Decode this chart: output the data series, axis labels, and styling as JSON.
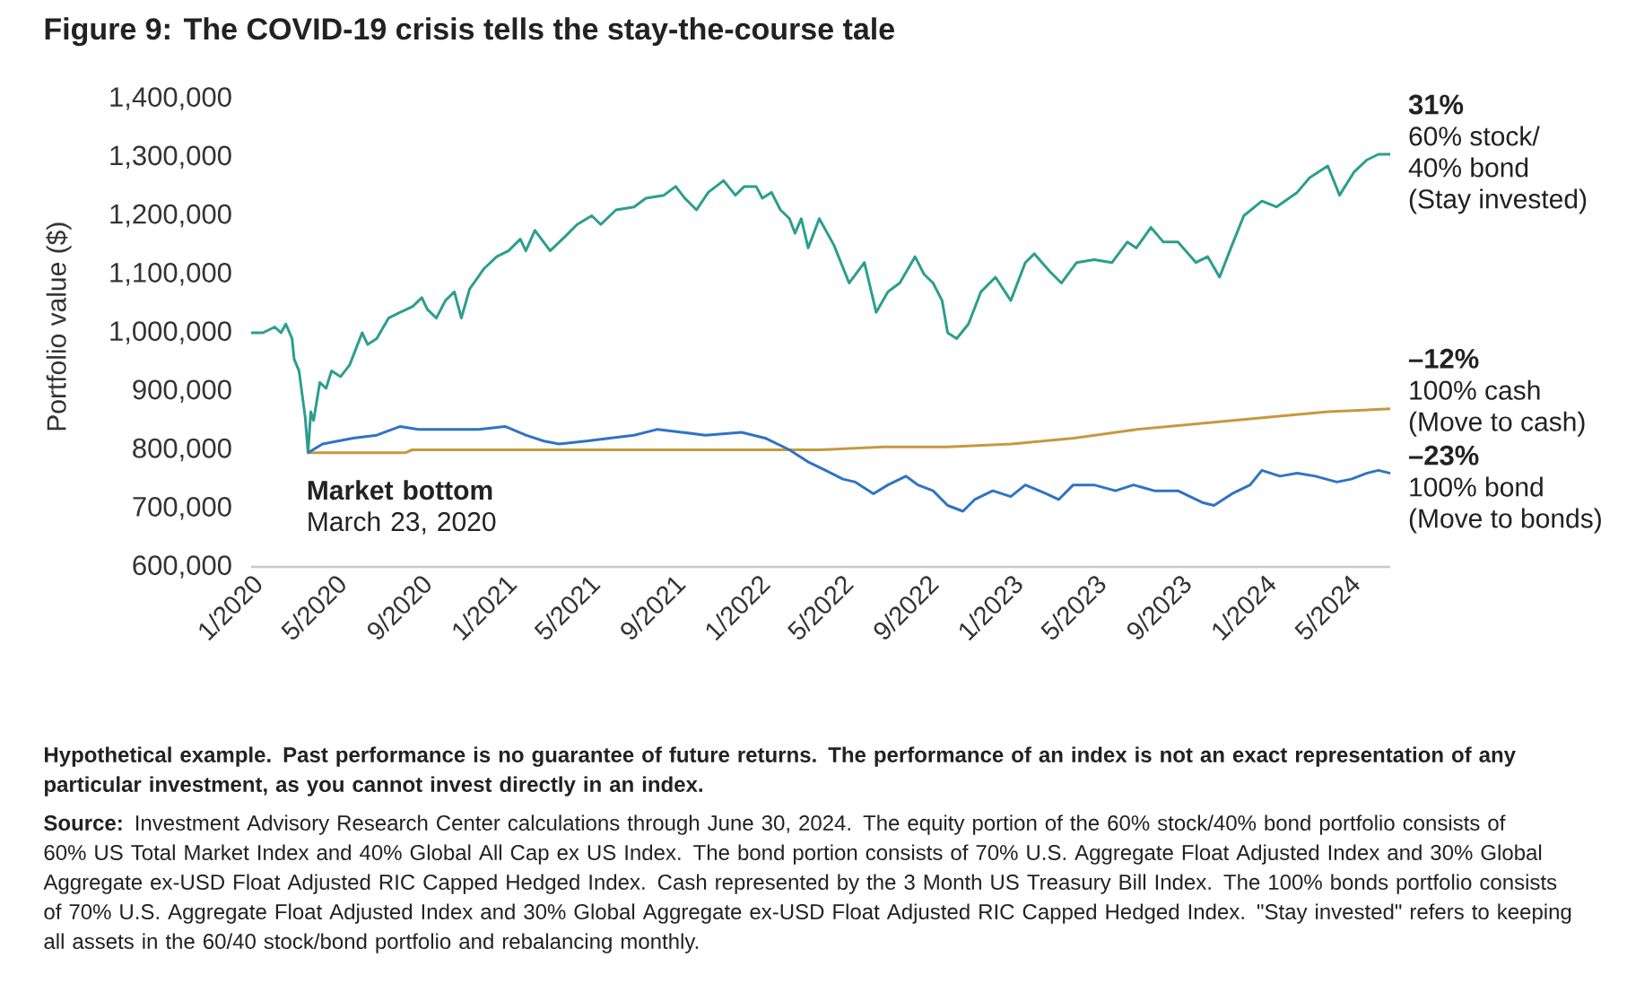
{
  "chart_data": {
    "type": "line",
    "title": "Figure 9: The COVID-19 crisis tells the stay-the-course tale",
    "ylabel": "Portfolio value ($)",
    "xlim": [
      "2020-01-01",
      "2024-06-30"
    ],
    "xticks": [
      {
        "value": "2020-01",
        "label": "1/2020"
      },
      {
        "value": "2020-05",
        "label": "5/2020"
      },
      {
        "value": "2020-09",
        "label": "9/2020"
      },
      {
        "value": "2021-01",
        "label": "1/2021"
      },
      {
        "value": "2021-05",
        "label": "5/2021"
      },
      {
        "value": "2021-09",
        "label": "9/2021"
      },
      {
        "value": "2022-01",
        "label": "1/2022"
      },
      {
        "value": "2022-05",
        "label": "5/2022"
      },
      {
        "value": "2022-09",
        "label": "9/2022"
      },
      {
        "value": "2023-01",
        "label": "1/2023"
      },
      {
        "value": "2023-05",
        "label": "5/2023"
      },
      {
        "value": "2023-09",
        "label": "9/2023"
      },
      {
        "value": "2024-01",
        "label": "1/2024"
      },
      {
        "value": "2024-05",
        "label": "5/2024"
      }
    ],
    "ylim": [
      600000,
      1400000
    ],
    "yticks": [
      {
        "value": 600000,
        "label": "600,000"
      },
      {
        "value": 700000,
        "label": "700,000"
      },
      {
        "value": 800000,
        "label": "800,000"
      },
      {
        "value": 900000,
        "label": "900,000"
      },
      {
        "value": 1000000,
        "label": "1,000,000"
      },
      {
        "value": 1100000,
        "label": "1,100,000"
      },
      {
        "value": 1200000,
        "label": "1,200,000"
      },
      {
        "value": 1300000,
        "label": "1,300,000"
      },
      {
        "value": 1400000,
        "label": "1,400,000"
      }
    ],
    "marker": "none",
    "series": [
      {
        "name": "60% stock/40% bond (Stay invested)",
        "color": "#2b9e8e",
        "x": [
          "2020-01-01",
          "2020-01-18",
          "2020-02-04",
          "2020-02-13",
          "2020-02-20",
          "2020-02-29",
          "2020-03-03",
          "2020-03-10",
          "2020-03-19",
          "2020-03-23",
          "2020-03-27",
          "2020-03-31",
          "2020-04-09",
          "2020-04-18",
          "2020-04-26",
          "2020-05-09",
          "2020-05-22",
          "2020-06-09",
          "2020-06-17",
          "2020-06-30",
          "2020-07-17",
          "2020-08-03",
          "2020-08-21",
          "2020-09-03",
          "2020-09-11",
          "2020-09-24",
          "2020-10-07",
          "2020-10-20",
          "2020-10-30",
          "2020-11-11",
          "2020-12-02",
          "2020-12-20",
          "2021-01-06",
          "2021-01-23",
          "2021-01-31",
          "2021-02-13",
          "2021-03-07",
          "2021-03-29",
          "2021-04-15",
          "2021-05-06",
          "2021-05-19",
          "2021-06-10",
          "2021-07-06",
          "2021-07-23",
          "2021-08-18",
          "2021-09-04",
          "2021-09-17",
          "2021-10-04",
          "2021-10-21",
          "2021-11-12",
          "2021-11-29",
          "2021-12-12",
          "2021-12-29",
          "2022-01-07",
          "2022-01-20",
          "2022-02-02",
          "2022-02-15",
          "2022-02-23",
          "2022-03-04",
          "2022-03-14",
          "2022-03-30",
          "2022-04-20",
          "2022-05-12",
          "2022-06-03",
          "2022-06-20",
          "2022-07-07",
          "2022-07-24",
          "2022-08-15",
          "2022-08-28",
          "2022-09-10",
          "2022-09-23",
          "2022-10-01",
          "2022-10-14",
          "2022-10-31",
          "2022-11-18",
          "2022-12-09",
          "2022-12-31",
          "2023-01-21",
          "2023-02-03",
          "2023-02-25",
          "2023-03-14",
          "2023-04-05",
          "2023-04-30",
          "2023-05-26",
          "2023-06-17",
          "2023-06-30",
          "2023-07-21",
          "2023-08-08",
          "2023-08-29",
          "2023-09-24",
          "2023-10-11",
          "2023-10-28",
          "2023-11-15",
          "2023-12-02",
          "2023-12-28",
          "2024-01-18",
          "2024-02-17",
          "2024-03-06",
          "2024-04-01",
          "2024-04-18",
          "2024-05-09",
          "2024-05-27",
          "2024-06-13",
          "2024-06-30"
        ],
        "values": [
          1000000,
          1000000,
          1010000,
          1000000,
          1015000,
          990000,
          955000,
          935000,
          855000,
          795000,
          865000,
          850000,
          915000,
          905000,
          935000,
          925000,
          945000,
          1000000,
          980000,
          990000,
          1025000,
          1035000,
          1045000,
          1060000,
          1040000,
          1025000,
          1055000,
          1070000,
          1025000,
          1075000,
          1110000,
          1130000,
          1140000,
          1160000,
          1140000,
          1175000,
          1140000,
          1165000,
          1185000,
          1200000,
          1185000,
          1210000,
          1215000,
          1230000,
          1235000,
          1250000,
          1230000,
          1210000,
          1240000,
          1260000,
          1235000,
          1250000,
          1250000,
          1230000,
          1240000,
          1210000,
          1195000,
          1170000,
          1195000,
          1145000,
          1195000,
          1150000,
          1085000,
          1120000,
          1035000,
          1070000,
          1085000,
          1130000,
          1100000,
          1085000,
          1055000,
          1000000,
          990000,
          1015000,
          1070000,
          1095000,
          1055000,
          1120000,
          1135000,
          1105000,
          1085000,
          1120000,
          1125000,
          1120000,
          1155000,
          1145000,
          1180000,
          1155000,
          1155000,
          1120000,
          1130000,
          1095000,
          1150000,
          1200000,
          1225000,
          1215000,
          1240000,
          1265000,
          1285000,
          1235000,
          1275000,
          1295000,
          1305000,
          1305000
        ]
      },
      {
        "name": "100% cash (Move to cash)",
        "color": "#c49a3f",
        "x": [
          "2020-03-23",
          "2020-08-10",
          "2020-08-20",
          "2022-04-01",
          "2022-07-01",
          "2022-10-01",
          "2023-01-01",
          "2023-04-01",
          "2023-07-01",
          "2023-10-01",
          "2024-01-01",
          "2024-04-01",
          "2024-06-30"
        ],
        "values": [
          795000,
          795000,
          800000,
          800000,
          805000,
          805000,
          810000,
          820000,
          835000,
          845000,
          855000,
          865000,
          870000
        ]
      },
      {
        "name": "100% bond (Move to bonds)",
        "color": "#2f73c5",
        "x": [
          "2020-03-23",
          "2020-04-13",
          "2020-05-27",
          "2020-06-30",
          "2020-08-03",
          "2020-08-29",
          "2020-10-11",
          "2020-11-24",
          "2021-01-01",
          "2021-01-31",
          "2021-02-26",
          "2021-03-20",
          "2021-04-28",
          "2021-06-01",
          "2021-07-06",
          "2021-08-09",
          "2021-09-13",
          "2021-10-17",
          "2021-12-08",
          "2022-01-11",
          "2022-02-15",
          "2022-03-13",
          "2022-04-08",
          "2022-05-03",
          "2022-05-21",
          "2022-06-16",
          "2022-07-07",
          "2022-08-02",
          "2022-08-19",
          "2022-09-10",
          "2022-10-01",
          "2022-10-23",
          "2022-11-09",
          "2022-12-05",
          "2022-12-31",
          "2023-01-21",
          "2023-02-20",
          "2023-03-10",
          "2023-03-31",
          "2023-04-30",
          "2023-05-31",
          "2023-06-26",
          "2023-07-26",
          "2023-08-29",
          "2023-10-03",
          "2023-10-20",
          "2023-11-15",
          "2023-12-11",
          "2023-12-28",
          "2024-01-23",
          "2024-02-17",
          "2024-03-14",
          "2024-04-14",
          "2024-05-05",
          "2024-05-27",
          "2024-06-13",
          "2024-06-30"
        ],
        "values": [
          795000,
          810000,
          820000,
          825000,
          840000,
          835000,
          835000,
          835000,
          840000,
          825000,
          815000,
          810000,
          815000,
          820000,
          825000,
          835000,
          830000,
          825000,
          830000,
          820000,
          800000,
          780000,
          765000,
          750000,
          745000,
          725000,
          740000,
          755000,
          740000,
          730000,
          705000,
          695000,
          715000,
          730000,
          720000,
          740000,
          725000,
          715000,
          740000,
          740000,
          730000,
          740000,
          730000,
          730000,
          710000,
          705000,
          725000,
          740000,
          765000,
          755000,
          760000,
          755000,
          745000,
          750000,
          760000,
          765000,
          760000
        ]
      }
    ],
    "annotations": [
      {
        "text": "31%",
        "x": "2024-06-30",
        "y": 1305000
      },
      {
        "text": "–12%",
        "x": "2024-06-30",
        "y": 870000
      },
      {
        "text": "–23%",
        "x": "2024-06-30",
        "y": 760000
      },
      {
        "text": "**Market bottom** March 23, 2020",
        "x": "2020-03-23",
        "y": 795000
      },
      "Hypothetical example. Past performance is no guarantee of future returns. The performance of an index is not an exact representation of any particular investment, as you cannot invest directly in an index.",
      "**Source:** Investment Advisory Research Center calculations through June 30, 2024. The equity portion of the 60% stock/40% bond portfolio consists of 60% US Total Market Index and 40% Global All Cap ex US Index. The bond portion consists of 70% U.S. Aggregate Float Adjusted Index and 30% Global Aggregate ex-USD Float Adjusted RIC Capped Hedged Index. Cash represented by the 3 Month US Treasury Bill Index. The 100% bonds portfolio consists of 70% U.S. Aggregate Float Adjusted Index and 30% Global Aggregate ex-USD Float Adjusted RIC Capped Hedged Index. \"Stay invested\" refers to keeping all assets in the 60/40 stock/bond portfolio and rebalancing monthly."
    ]
  }
}
